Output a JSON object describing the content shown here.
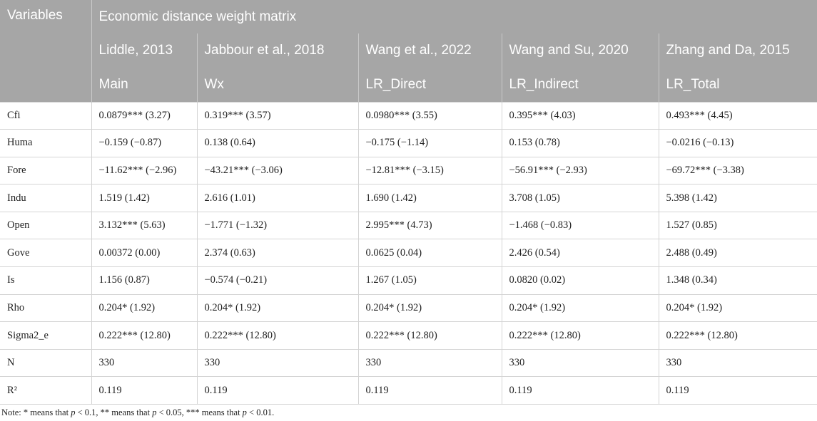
{
  "table": {
    "variables_header": "Variables",
    "group_header": "Economic distance weight matrix",
    "sources": [
      "Liddle, 2013",
      "Jabbour et al., 2018",
      "Wang et al., 2022",
      "Wang and Su, 2020",
      "Zhang and Da, 2015"
    ],
    "models": [
      "Main",
      "Wx",
      "LR_Direct",
      "LR_Indirect",
      "LR_Total"
    ],
    "rows": [
      {
        "name": "Cfi",
        "values": [
          "0.0879*** (3.27)",
          "0.319*** (3.57)",
          "0.0980*** (3.55)",
          "0.395*** (4.03)",
          "0.493*** (4.45)"
        ]
      },
      {
        "name": "Huma",
        "values": [
          "−0.159 (−0.87)",
          "0.138 (0.64)",
          "−0.175 (−1.14)",
          "0.153 (0.78)",
          "−0.0216 (−0.13)"
        ]
      },
      {
        "name": "Fore",
        "values": [
          "−11.62*** (−2.96)",
          "−43.21*** (−3.06)",
          "−12.81*** (−3.15)",
          "−56.91*** (−2.93)",
          "−69.72*** (−3.38)"
        ]
      },
      {
        "name": "Indu",
        "values": [
          "1.519 (1.42)",
          "2.616 (1.01)",
          "1.690 (1.42)",
          "3.708 (1.05)",
          "5.398 (1.42)"
        ]
      },
      {
        "name": "Open",
        "values": [
          "3.132*** (5.63)",
          "−1.771 (−1.32)",
          "2.995*** (4.73)",
          "−1.468 (−0.83)",
          "1.527 (0.85)"
        ]
      },
      {
        "name": "Gove",
        "values": [
          "0.00372 (0.00)",
          "2.374 (0.63)",
          "0.0625 (0.04)",
          "2.426 (0.54)",
          "2.488 (0.49)"
        ]
      },
      {
        "name": "Is",
        "values": [
          "1.156 (0.87)",
          "−0.574 (−0.21)",
          "1.267 (1.05)",
          "0.0820 (0.02)",
          "1.348 (0.34)"
        ]
      },
      {
        "name": "Rho",
        "values": [
          "0.204* (1.92)",
          "0.204* (1.92)",
          "0.204* (1.92)",
          "0.204* (1.92)",
          "0.204* (1.92)"
        ]
      },
      {
        "name": "Sigma2_e",
        "values": [
          "0.222*** (12.80)",
          "0.222*** (12.80)",
          "0.222*** (12.80)",
          "0.222*** (12.80)",
          "0.222*** (12.80)"
        ]
      },
      {
        "name": "N",
        "values": [
          "330",
          "330",
          "330",
          "330",
          "330"
        ]
      },
      {
        "name": "R²",
        "values": [
          "0.119",
          "0.119",
          "0.119",
          "0.119",
          "0.119"
        ]
      }
    ]
  },
  "note": {
    "prefix": "Note: * means that ",
    "p": "p",
    "t1": " < 0.1, ** means that ",
    "t2": " < 0.05, *** means that ",
    "t3": " < 0.01."
  }
}
